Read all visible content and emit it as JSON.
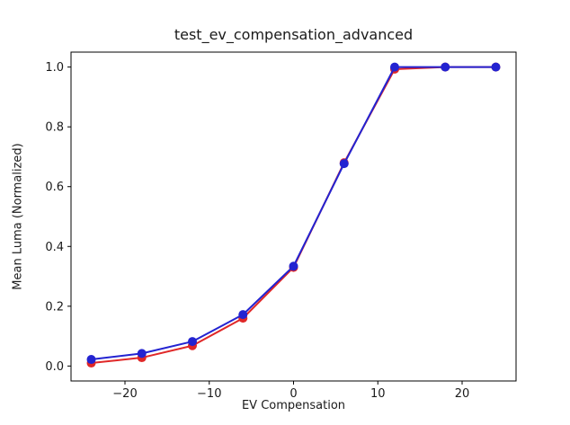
{
  "figure": {
    "background": "#ffffff"
  },
  "chart_data": {
    "type": "line",
    "title": "test_ev_compensation_advanced",
    "xlabel": "EV Compensation",
    "ylabel": "Mean Luma (Normalized)",
    "x": [
      -24,
      -18,
      -12,
      -6,
      0,
      6,
      12,
      18,
      24
    ],
    "series": [
      {
        "name": "red-series",
        "color": "#e02828",
        "marker": "circle",
        "values": [
          0.01,
          0.028,
          0.068,
          0.16,
          0.33,
          0.68,
          0.993,
          1.0,
          1.0
        ]
      },
      {
        "name": "blue-series",
        "color": "#2323d1",
        "marker": "circle",
        "values": [
          0.022,
          0.042,
          0.082,
          0.172,
          0.334,
          0.677,
          1.0,
          1.0,
          1.0
        ]
      }
    ],
    "xlim": [
      -26.4,
      26.4
    ],
    "ylim": [
      -0.05,
      1.05
    ],
    "xticks": [
      -20,
      -10,
      0,
      10,
      20
    ],
    "xtick_labels": [
      "−20",
      "−10",
      "0",
      "10",
      "20"
    ],
    "yticks": [
      0.0,
      0.2,
      0.4,
      0.6,
      0.8,
      1.0
    ],
    "ytick_labels": [
      "0.0",
      "0.2",
      "0.4",
      "0.6",
      "0.8",
      "1.0"
    ],
    "grid": false,
    "legend_position": "none",
    "spine_color": "#000000",
    "line_width": 2,
    "marker_radius": 5
  }
}
